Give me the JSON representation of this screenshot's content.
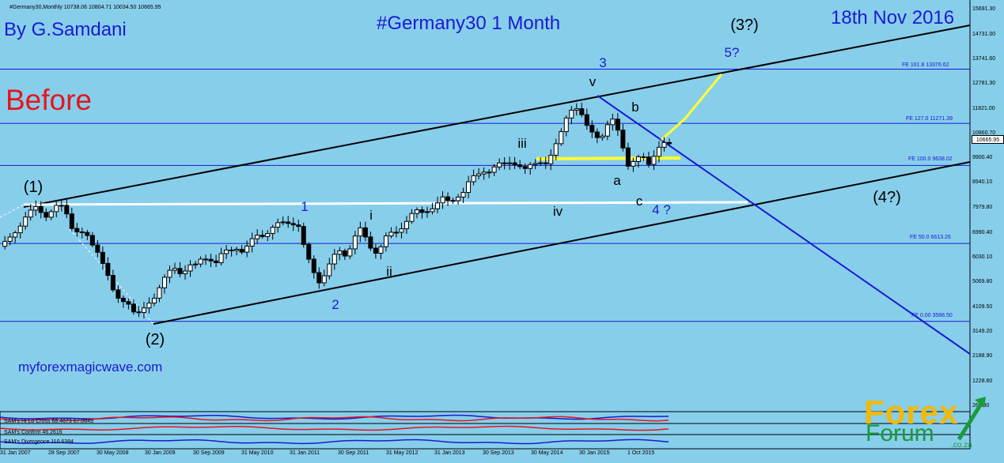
{
  "header_text": "#Germany30,Monthly  10738.06 10804.71 10034.50 10665.95",
  "author": "By G.Samdani",
  "chart_title": "#Germany30 1 Month",
  "date": "18th Nov 2016",
  "label_before": "Before",
  "website": "myforexmagicwave.com",
  "current_price": "10665.95",
  "logo": {
    "forex": "Forex",
    "forum": "Forum",
    "domain": ".co.za"
  },
  "wave_labels": {
    "w1_paren": "(1)",
    "w2_paren": "(2)",
    "w3_paren": "(3?)",
    "w4_paren": "(4?)",
    "w1": "1",
    "w2": "2",
    "w3": "3",
    "w4": "4 ?",
    "w5": "5?",
    "i": "i",
    "ii": "ii",
    "iii": "iii",
    "iv": "iv",
    "v": "v",
    "a": "a",
    "b": "b",
    "c": "c"
  },
  "indicators": [
    "SAM's Hi Lo Cross 68.4673 67.0649",
    "SAM's Confirm 46.2616",
    "SAM's Divergence 110.6384"
  ],
  "colors": {
    "background": "#87ceeb",
    "candle": "#000000",
    "fib_lines": "#1a1ad0",
    "channel": "#000000",
    "projection": "#ffff33",
    "support": "#ffffff",
    "downtrend": "#1a1ad0"
  },
  "chart_data": {
    "type": "candlestick",
    "title": "#Germany30 1 Month",
    "yticks": [
      "15691.30",
      "14731.00",
      "13741.60",
      "12781.30",
      "11821.00",
      "10860.70",
      "9900.40",
      "8940.10",
      "7979.80",
      "6990.40",
      "6030.10",
      "5069.80",
      "4109.50",
      "3149.20",
      "2188.90",
      "1228.60",
      "268.30"
    ],
    "xticks": [
      "31 Jan 2007",
      "28 Sep 2007",
      "30 May 2008",
      "30 Jan 2009",
      "30 Sep 2009",
      "31 May 2010",
      "31 Jan 2011",
      "30 Sep 2011",
      "31 May 2012",
      "31 Jan 2013",
      "30 Sep 2013",
      "30 May 2014",
      "30 Jan 2015",
      "1 Oct 2015"
    ],
    "ylim": [
      268.3,
      15691.3
    ],
    "fib_levels": [
      {
        "label": "FE  161.8  13376.62",
        "value": 13376.62
      },
      {
        "label": "FE 127.0  11271.39",
        "value": 11271.39
      },
      {
        "label": "FE 100.0  9638.02",
        "value": 9638.02
      },
      {
        "label": "FE  50.0  6613.26",
        "value": 6613.26
      },
      {
        "label": "FE  0.00  3588.50",
        "value": 3588.5
      }
    ],
    "close_path": [
      [
        0,
        6500
      ],
      [
        4,
        6800
      ],
      [
        8,
        7200
      ],
      [
        12,
        7600
      ],
      [
        16,
        7800
      ],
      [
        20,
        8000
      ],
      [
        24,
        7700
      ],
      [
        28,
        7900
      ],
      [
        32,
        8050
      ],
      [
        36,
        7900
      ],
      [
        40,
        7300
      ],
      [
        44,
        7100
      ],
      [
        48,
        6900
      ],
      [
        52,
        6500
      ],
      [
        56,
        6300
      ],
      [
        60,
        5600
      ],
      [
        64,
        4700
      ],
      [
        68,
        4300
      ],
      [
        72,
        4500
      ],
      [
        76,
        4000
      ],
      [
        80,
        3800
      ],
      [
        84,
        4200
      ],
      [
        88,
        4600
      ],
      [
        92,
        5100
      ],
      [
        96,
        5400
      ],
      [
        100,
        5600
      ],
      [
        104,
        5500
      ],
      [
        108,
        5800
      ],
      [
        112,
        5700
      ],
      [
        116,
        6000
      ],
      [
        120,
        6100
      ],
      [
        124,
        5900
      ],
      [
        128,
        6200
      ],
      [
        132,
        6300
      ],
      [
        136,
        6500
      ],
      [
        140,
        6300
      ],
      [
        144,
        6600
      ],
      [
        148,
        6900
      ],
      [
        152,
        7000
      ],
      [
        156,
        7200
      ],
      [
        160,
        7300
      ],
      [
        164,
        7400
      ],
      [
        168,
        7500
      ],
      [
        172,
        7300
      ],
      [
        176,
        6200
      ],
      [
        180,
        5600
      ],
      [
        184,
        5200
      ],
      [
        188,
        5500
      ],
      [
        192,
        6000
      ],
      [
        196,
        6300
      ],
      [
        200,
        6200
      ],
      [
        204,
        6800
      ],
      [
        208,
        7100
      ],
      [
        212,
        6700
      ],
      [
        216,
        6300
      ],
      [
        220,
        6500
      ],
      [
        224,
        6900
      ],
      [
        228,
        7000
      ],
      [
        232,
        7300
      ],
      [
        236,
        7600
      ],
      [
        240,
        7800
      ],
      [
        244,
        7800
      ],
      [
        248,
        8000
      ],
      [
        252,
        8100
      ],
      [
        256,
        8300
      ],
      [
        260,
        8200
      ],
      [
        264,
        8500
      ],
      [
        268,
        8600
      ],
      [
        272,
        9000
      ],
      [
        276,
        9300
      ],
      [
        280,
        9500
      ],
      [
        284,
        9400
      ],
      [
        288,
        9600
      ],
      [
        292,
        9700
      ],
      [
        296,
        9900
      ],
      [
        300,
        9600
      ],
      [
        304,
        9400
      ],
      [
        308,
        9700
      ],
      [
        312,
        9900
      ],
      [
        316,
        9700
      ],
      [
        320,
        10000
      ],
      [
        324,
        10800
      ],
      [
        328,
        11600
      ],
      [
        332,
        11900
      ],
      [
        336,
        11600
      ],
      [
        340,
        11200
      ],
      [
        344,
        11000
      ],
      [
        348,
        10600
      ],
      [
        352,
        11100
      ],
      [
        356,
        11500
      ],
      [
        360,
        10700
      ],
      [
        364,
        9600
      ],
      [
        368,
        9700
      ],
      [
        372,
        10100
      ],
      [
        376,
        9800
      ],
      [
        380,
        10100
      ],
      [
        384,
        10400
      ],
      [
        388,
        10500
      ],
      [
        390,
        10666
      ]
    ]
  }
}
